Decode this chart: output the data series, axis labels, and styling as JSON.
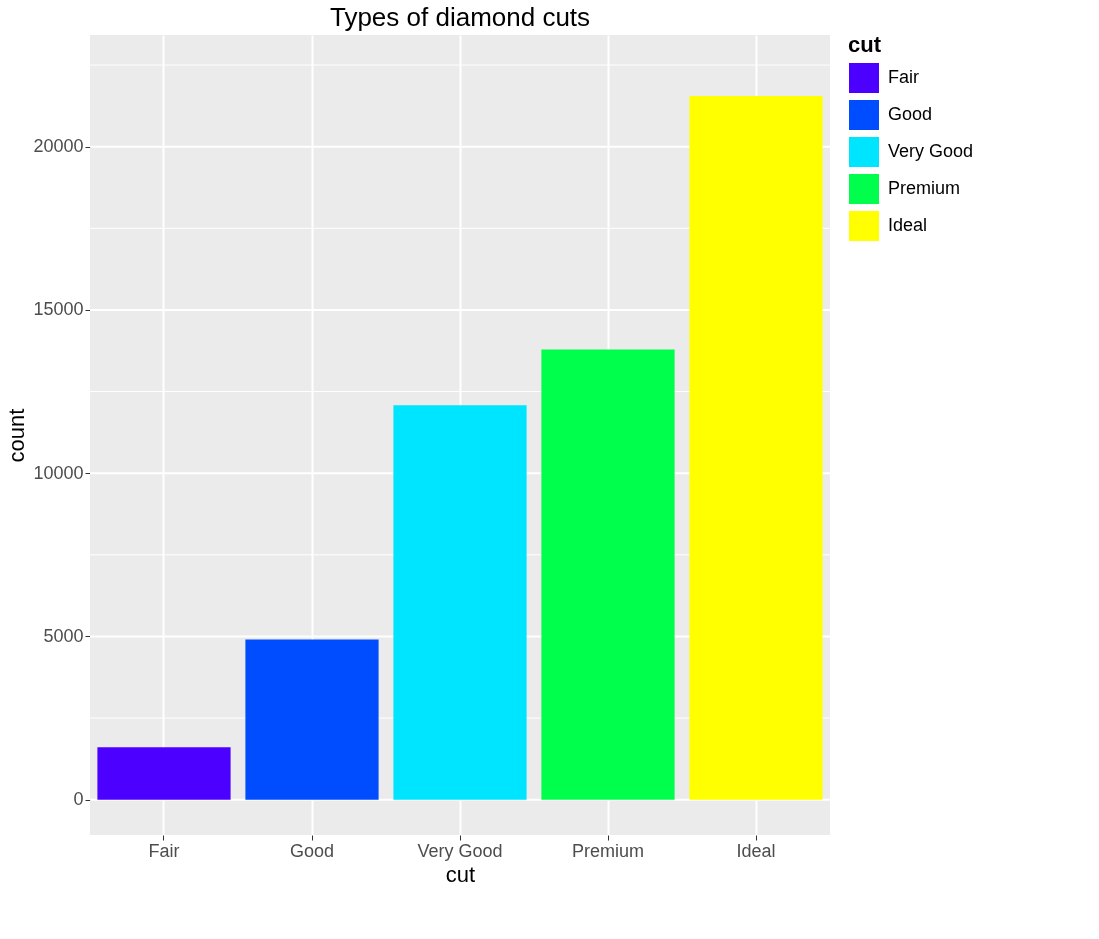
{
  "chart_data": {
    "type": "bar",
    "title": "Types of diamond cuts",
    "xlabel": "cut",
    "ylabel": "count",
    "legend_title": "cut",
    "categories": [
      "Fair",
      "Good",
      "Very Good",
      "Premium",
      "Ideal"
    ],
    "stacked": true,
    "series": [
      {
        "name": "Fair",
        "color": "#4c00ff",
        "values": [
          1610,
          null,
          null,
          null,
          null
        ]
      },
      {
        "name": "Good",
        "color": "#004cff",
        "values": [
          null,
          4910,
          null,
          null,
          null
        ]
      },
      {
        "name": "Very Good",
        "color": "#00e5ff",
        "values": [
          null,
          null,
          12080,
          null,
          null
        ]
      },
      {
        "name": "Premium",
        "color": "#00ff4d",
        "values": [
          null,
          null,
          null,
          13790,
          null
        ]
      },
      {
        "name": "Ideal",
        "color": "#ffff00",
        "values": [
          null,
          null,
          null,
          null,
          21550
        ]
      }
    ],
    "ylim": [
      -1080,
      23420
    ],
    "yticks": [
      0,
      {
        "value": 2500,
        "label": null
      },
      5000,
      {
        "value": 7500,
        "label": null
      },
      10000,
      {
        "value": 12500,
        "label": null
      },
      15000,
      {
        "value": 17500,
        "label": null
      },
      20000,
      {
        "value": 22500,
        "label": null
      }
    ],
    "grid": true,
    "legend": "right"
  }
}
